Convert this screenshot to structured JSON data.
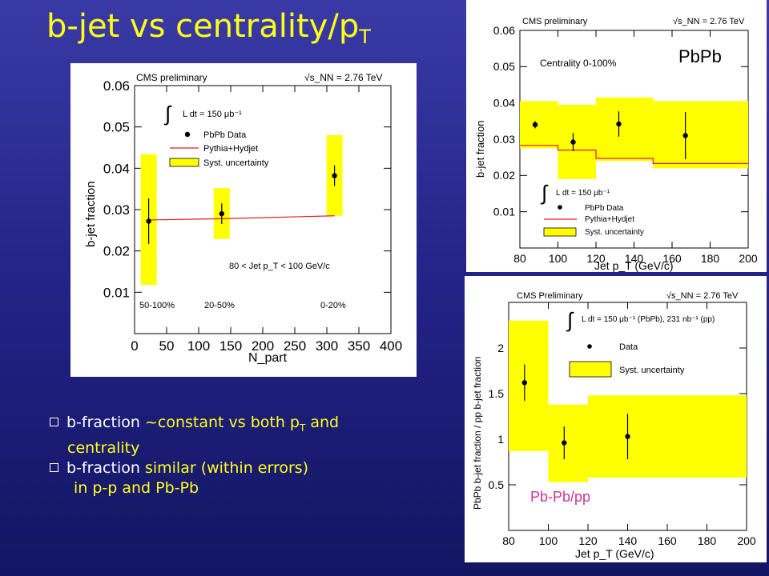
{
  "slide": {
    "title_main": "b-jet vs centrality/p",
    "title_sub": "T",
    "bullets": [
      {
        "plain": "b-fraction ",
        "hl": "~constant vs both p",
        "sub": "T",
        "hl2": " and",
        "cont": "centrality"
      },
      {
        "plain": "b-fraction ",
        "hl": "similar (within errors)",
        "cont": "in p-p and Pb-Pb"
      }
    ],
    "colors": {
      "title": "#ffff1a",
      "highlight": "#ffff1a",
      "background": "#24248a",
      "syst_band": "#ffff00",
      "mc_line": "#e31a1c",
      "ratio_label": "#cc3399"
    }
  },
  "chart_data": [
    {
      "type": "scatter",
      "header_left": "CMS preliminary",
      "header_right": "√s_NN = 2.76 TeV",
      "xlabel": "N_part",
      "ylabel": "b-jet fraction",
      "xlim": [
        0,
        400
      ],
      "ylim": [
        0,
        0.06
      ],
      "xticks": [
        "0",
        "50",
        "100",
        "150",
        "200",
        "250",
        "300",
        "350",
        "400"
      ],
      "yticks": [
        "0.01",
        "0.02",
        "0.03",
        "0.04",
        "0.05",
        "0.06"
      ],
      "legend": {
        "lumi": "L dt = 150 μb⁻¹",
        "items": [
          "PbPb Data",
          "Pythia+Hydjet",
          "Syst. uncertainty"
        ]
      },
      "annotation": "80 < Jet p_T < 100 GeV/c",
      "centrality_labels": [
        "50-100%",
        "20-50%",
        "0-20%"
      ],
      "points": [
        {
          "x": 22,
          "y": 0.0272,
          "err": 0.0055,
          "syst": [
            0.0118,
            0.0434
          ]
        },
        {
          "x": 136,
          "y": 0.029,
          "err": 0.0025,
          "syst": [
            0.0229,
            0.0352
          ]
        },
        {
          "x": 312,
          "y": 0.0382,
          "err": 0.0025,
          "syst": [
            0.0285,
            0.048
          ]
        }
      ],
      "mc": [
        [
          22,
          0.0275
        ],
        [
          136,
          0.0278
        ],
        [
          312,
          0.0285
        ]
      ]
    },
    {
      "type": "scatter",
      "header_left": "CMS preliminary",
      "header_right": "√s_NN = 2.76 TeV",
      "label": "PbPb",
      "annotation": "Centrality 0-100%",
      "xlabel": "Jet p_T (GeV/c)",
      "ylabel": "b-jet fraction",
      "xlim": [
        80,
        200
      ],
      "ylim": [
        0,
        0.06
      ],
      "xticks": [
        "80",
        "100",
        "120",
        "140",
        "160",
        "180",
        "200"
      ],
      "yticks": [
        "0.01",
        "0.02",
        "0.03",
        "0.04",
        "0.05",
        "0.06"
      ],
      "legend": {
        "lumi": "L dt = 150 μb⁻¹",
        "items": [
          "PbPb Data",
          "Pythia+Hydjet",
          "Syst. uncertainty"
        ]
      },
      "bins": [
        {
          "x0": 80,
          "x1": 100,
          "y": 0.034,
          "err": 0.001,
          "syst": [
            0.0275,
            0.0405
          ],
          "mc": 0.0283
        },
        {
          "x0": 100,
          "x1": 120,
          "y": 0.0292,
          "err": 0.0025,
          "syst": [
            0.019,
            0.0395
          ],
          "mc": 0.027
        },
        {
          "x0": 120,
          "x1": 150,
          "y": 0.0342,
          "err": 0.0035,
          "syst": [
            0.024,
            0.0415
          ],
          "mc": 0.0247
        },
        {
          "x0": 150,
          "x1": 200,
          "y": 0.031,
          "err": 0.0065,
          "syst": [
            0.022,
            0.0405
          ],
          "mc": 0.0233
        }
      ]
    },
    {
      "type": "scatter",
      "header_left": "CMS Preliminary",
      "header_right": "√s_NN = 2.76 TeV",
      "label": "Pb-Pb/pp",
      "xlabel": "Jet p_T (GeV/c)",
      "ylabel": "PbPb b-jet fraction / pp b-jet fraction",
      "xlim": [
        80,
        200
      ],
      "ylim": [
        0,
        2.5
      ],
      "xticks": [
        "80",
        "100",
        "120",
        "140",
        "160",
        "180",
        "200"
      ],
      "yticks": [
        "0.5",
        "1",
        "1.5",
        "2"
      ],
      "legend": {
        "lumi": "L dt = 150 μb⁻¹ (PbPb), 231 nb⁻¹ (pp)",
        "items": [
          "Data",
          "Syst. uncertainty"
        ]
      },
      "bins": [
        {
          "x0": 80,
          "x1": 100,
          "x": 88,
          "y": 1.62,
          "err": 0.2,
          "syst": [
            0.87,
            2.3
          ]
        },
        {
          "x0": 100,
          "x1": 120,
          "x": 108,
          "y": 0.96,
          "err": 0.18,
          "syst": [
            0.53,
            1.38
          ]
        },
        {
          "x0": 120,
          "x1": 200,
          "x": 140,
          "y": 1.03,
          "err": 0.25,
          "syst": [
            0.58,
            1.48
          ]
        }
      ]
    }
  ]
}
